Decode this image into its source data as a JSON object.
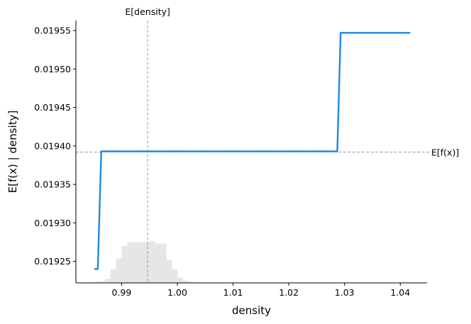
{
  "chart_data": {
    "type": "line",
    "xlabel": "density",
    "ylabel": "E[f(x) | density]",
    "xlim": [
      0.9818,
      1.0448
    ],
    "ylim": [
      0.019222,
      0.019563
    ],
    "x_ticks": [
      0.99,
      1.0,
      1.01,
      1.02,
      1.03,
      1.04
    ],
    "x_tick_labels": [
      "0.99",
      "1.00",
      "1.01",
      "1.02",
      "1.03",
      "1.04"
    ],
    "y_ticks": [
      0.01925,
      0.0193,
      0.01935,
      0.0194,
      0.01945,
      0.0195,
      0.01955
    ],
    "y_tick_labels": [
      "0.01925",
      "0.01930",
      "0.01935",
      "0.01940",
      "0.01945",
      "0.01950",
      "0.01955"
    ],
    "grid": false,
    "series": [
      {
        "color": "#1e88e5",
        "x": [
          0.98511,
          0.98573,
          0.98635,
          1.0287,
          1.0293,
          1.0418
        ],
        "y": [
          0.01924,
          0.01924,
          0.019393,
          0.019393,
          0.019547,
          0.019547
        ]
      }
    ],
    "reference_lines": {
      "vertical": {
        "x": 0.99467,
        "label": "E[density]"
      },
      "horizontal": {
        "y": 0.019392,
        "label": "E[f(x)]"
      }
    },
    "histogram": {
      "color": "#e6e6e6",
      "bin_edges": [
        0.985,
        0.986,
        0.987,
        0.988,
        0.989,
        0.99,
        0.991,
        0.992,
        0.993,
        0.994,
        0.995,
        0.996,
        0.997,
        0.998,
        0.999,
        1.0,
        1.001,
        1.002,
        1.003
      ],
      "counts": [
        0.03,
        0.05,
        0.15,
        0.5,
        0.9,
        1.35,
        1.5,
        1.5,
        1.5,
        1.5,
        1.55,
        1.45,
        1.45,
        0.85,
        0.5,
        0.2,
        0.08,
        0.02
      ],
      "max_height_fraction": 0.16
    },
    "colors": {
      "line": "#1e88e5",
      "reference": "#999999",
      "histogram": "#e6e6e6",
      "axis": "#000000"
    }
  }
}
